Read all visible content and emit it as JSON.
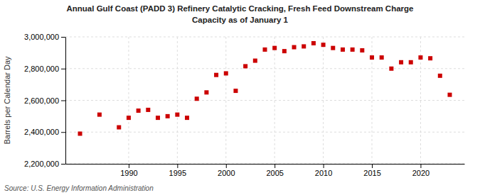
{
  "chart_data": {
    "type": "scatter",
    "title": "Annual Gulf Coast (PADD 3) Refinery Catalytic Cracking, Fresh Feed Downstream Charge",
    "subtitle": "Capacity as of January 1",
    "y_label": "Barrels per Calendar Day",
    "annotations": [
      "Source: U.S. Energy Information Administration"
    ],
    "x": [
      1985,
      1987,
      1989,
      1990,
      1991,
      1992,
      1993,
      1994,
      1995,
      1996,
      1997,
      1998,
      1999,
      2000,
      2001,
      2002,
      2003,
      2004,
      2005,
      2006,
      2007,
      2008,
      2009,
      2010,
      2011,
      2012,
      2013,
      2014,
      2015,
      2016,
      2017,
      2018,
      2019,
      2020,
      2021,
      2022,
      2023
    ],
    "values": [
      2390000,
      2510000,
      2430000,
      2490000,
      2535000,
      2540000,
      2490000,
      2500000,
      2510000,
      2490000,
      2610000,
      2650000,
      2760000,
      2770000,
      2660000,
      2815000,
      2850000,
      2920000,
      2930000,
      2910000,
      2935000,
      2940000,
      2960000,
      2950000,
      2930000,
      2920000,
      2920000,
      2915000,
      2870000,
      2870000,
      2800000,
      2840000,
      2840000,
      2870000,
      2865000,
      2755000,
      2635000
    ],
    "color": "#cc0000",
    "marker": "square",
    "xlim": [
      1983.5,
      2024.5
    ],
    "xticks": [
      1990,
      1995,
      2000,
      2005,
      2010,
      2015,
      2020
    ],
    "ylim": [
      2200000,
      3000000
    ],
    "yticks": [
      {
        "value": 2200000,
        "label": "2,200,000"
      },
      {
        "value": 2400000,
        "label": "2,400,000"
      },
      {
        "value": 2600000,
        "label": "2,600,000"
      },
      {
        "value": 2800000,
        "label": "2,800,000"
      },
      {
        "value": 3000000,
        "label": "3,000,000"
      }
    ],
    "grid": true
  }
}
